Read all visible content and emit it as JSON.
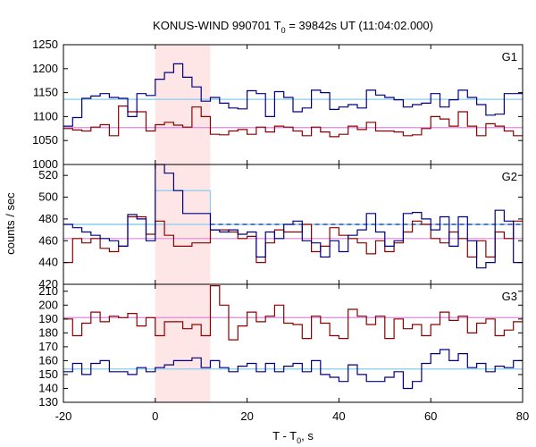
{
  "chart_data": {
    "type": "line",
    "title": "KONUS-WIND 990701 T",
    "title_sub": "0",
    "title_rest": " = 39842s UT (11:04:02.000)",
    "xlabel": "T - T",
    "xlabel_sub": "0",
    "xlabel_rest": ", s",
    "ylabel": "counts / sec",
    "xlim": [
      -20,
      80
    ],
    "x_ticks": [
      "-20",
      "0",
      "20",
      "40",
      "60",
      "80"
    ],
    "x_tick_values": [
      -20,
      0,
      20,
      40,
      60,
      80
    ],
    "highlight_interval": [
      0,
      12
    ],
    "colors": {
      "red": "#8b0000",
      "blue": "#000080",
      "pink": "#dd88dd",
      "cyan": "#88ccee",
      "band": "#ffe6e6"
    },
    "x_edges": [
      -20,
      -18,
      -16,
      -14,
      -12,
      -10,
      -8,
      -6,
      -4,
      -2,
      0,
      2,
      4,
      6,
      8,
      10,
      12,
      14,
      16,
      18,
      20,
      22,
      24,
      26,
      28,
      30,
      32,
      34,
      36,
      38,
      40,
      42,
      44,
      46,
      48,
      50,
      52,
      54,
      56,
      58,
      60,
      62,
      64,
      66,
      68,
      70,
      72,
      74,
      76,
      78,
      80
    ],
    "panels": [
      {
        "label": "G1",
        "ylim": [
          1000,
          1250
        ],
        "y_ticks": [
          "1000",
          "1050",
          "1100",
          "1150",
          "1200",
          "1250"
        ],
        "y_tick_values": [
          1000,
          1050,
          1100,
          1150,
          1200,
          1250
        ],
        "red_bg": 1077,
        "blue_bg": 1136,
        "red": [
          1075,
          1072,
          1070,
          1078,
          1083,
          1060,
          1122,
          1110,
          1110,
          1070,
          1083,
          1088,
          1082,
          1078,
          1120,
          1100,
          1063,
          1062,
          1070,
          1073,
          1063,
          1078,
          1068,
          1080,
          1078,
          1070,
          1060,
          1078,
          1068,
          1058,
          1063,
          1080,
          1073,
          1088,
          1070,
          1070,
          1068,
          1060,
          1062,
          1075,
          1100,
          1095,
          1080,
          1110,
          1080,
          1060,
          1085,
          1080,
          1070,
          1060
        ],
        "blue": [
          1080,
          1098,
          1138,
          1143,
          1148,
          1140,
          1138,
          1100,
          1148,
          1144,
          1178,
          1192,
          1210,
          1182,
          1162,
          1132,
          1140,
          1128,
          1118,
          1116,
          1154,
          1148,
          1100,
          1152,
          1140,
          1110,
          1118,
          1155,
          1150,
          1115,
          1120,
          1125,
          1118,
          1155,
          1145,
          1140,
          1135,
          1120,
          1125,
          1128,
          1148,
          1120,
          1135,
          1155,
          1140,
          1125,
          1103,
          1105,
          1148,
          1148
        ]
      },
      {
        "label": "G2",
        "ylim": [
          420,
          530
        ],
        "y_ticks": [
          "420",
          "440",
          "460",
          "480",
          "500",
          "520"
        ],
        "y_tick_values": [
          420,
          440,
          460,
          480,
          500,
          520
        ],
        "red_bg": 462,
        "blue_bg": 475,
        "red": [
          440,
          462,
          458,
          462,
          453,
          450,
          455,
          482,
          482,
          466,
          478,
          465,
          455,
          455,
          458,
          458,
          470,
          470,
          468,
          462,
          464,
          440,
          458,
          470,
          468,
          468,
          475,
          450,
          455,
          472,
          465,
          462,
          458,
          448,
          460,
          450,
          458,
          468,
          478,
          475,
          462,
          458,
          468,
          462,
          445,
          460,
          445,
          468,
          462,
          478
        ],
        "blue": [
          475,
          472,
          468,
          465,
          462,
          460,
          455,
          484,
          480,
          460,
          530,
          522,
          506,
          485,
          485,
          485,
          470,
          468,
          470,
          466,
          468,
          445,
          468,
          462,
          475,
          478,
          460,
          458,
          445,
          460,
          450,
          465,
          470,
          485,
          468,
          455,
          460,
          485,
          486,
          480,
          470,
          482,
          455,
          482,
          460,
          435,
          440,
          488,
          478,
          440
        ],
        "cyan_step": {
          "segments": [
            {
              "x": [
                -20,
                0
              ],
              "y": 475
            },
            {
              "x": [
                0,
                12
              ],
              "y": 506
            },
            {
              "x": [
                12,
                80
              ],
              "y": 475
            }
          ]
        }
      },
      {
        "label": "G3",
        "ylim": [
          130,
          215
        ],
        "y_ticks": [
          "130",
          "140",
          "150",
          "160",
          "170",
          "180",
          "190",
          "200",
          "210"
        ],
        "y_tick_values": [
          130,
          140,
          150,
          160,
          170,
          180,
          190,
          200,
          210
        ],
        "red_bg": 191,
        "blue_bg": 154,
        "red": [
          190,
          178,
          187,
          195,
          188,
          192,
          191,
          194,
          185,
          191,
          178,
          188,
          188,
          183,
          186,
          178,
          214,
          200,
          175,
          185,
          195,
          188,
          192,
          200,
          187,
          186,
          176,
          192,
          187,
          178,
          176,
          197,
          192,
          186,
          192,
          176,
          190,
          183,
          186,
          178,
          186,
          195,
          189,
          192,
          180,
          187,
          190,
          178,
          182,
          188
        ],
        "blue": [
          152,
          158,
          150,
          158,
          160,
          152,
          152,
          150,
          155,
          152,
          155,
          157,
          160,
          160,
          162,
          155,
          160,
          155,
          152,
          156,
          158,
          152,
          158,
          152,
          156,
          158,
          152,
          160,
          150,
          148,
          145,
          157,
          150,
          145,
          145,
          148,
          152,
          140,
          145,
          158,
          165,
          168,
          160,
          165,
          155,
          158,
          152,
          156,
          155,
          160
        ]
      }
    ]
  }
}
